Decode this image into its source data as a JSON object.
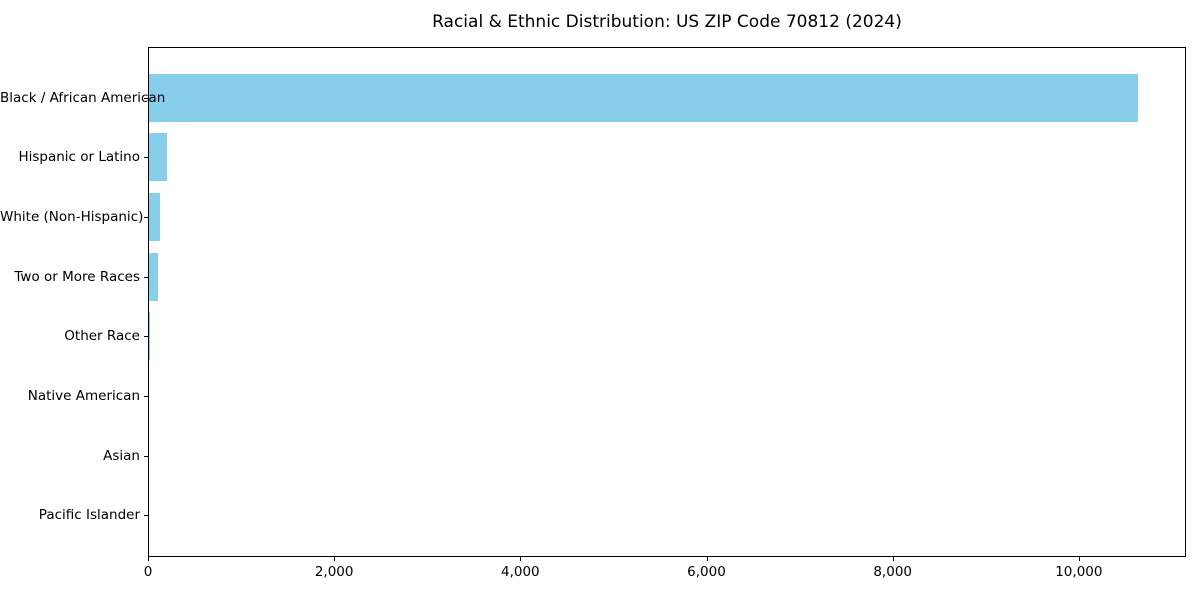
{
  "title": "Racial & Ethnic Distribution: US ZIP Code 70812 (2024)",
  "chart_data": {
    "type": "bar",
    "orientation": "horizontal",
    "title": "Racial & Ethnic Distribution: US ZIP Code 70812 (2024)",
    "categories": [
      "Black / African American",
      "Hispanic or Latino",
      "White (Non-Hispanic)",
      "Two or More Races",
      "Other Race",
      "Native American",
      "Asian",
      "Pacific Islander"
    ],
    "values": [
      10620,
      190,
      115,
      100,
      10,
      0,
      0,
      0
    ],
    "xlabel": "",
    "ylabel": "",
    "xlim": [
      0,
      11151
    ],
    "x_ticks": [
      0,
      2000,
      4000,
      6000,
      8000,
      10000
    ],
    "x_tick_labels": [
      "0",
      "2,000",
      "4,000",
      "6,000",
      "8,000",
      "10,000"
    ],
    "bar_color": "#87CEEB",
    "axis_color": "#000000",
    "background_color": "#ffffff",
    "grid": false,
    "legend": null
  }
}
